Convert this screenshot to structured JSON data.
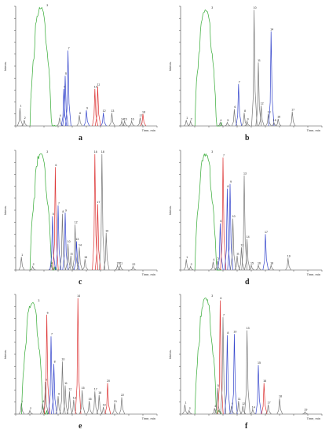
{
  "figure": {
    "panel_letters": [
      "a",
      "b",
      "c",
      "d",
      "e",
      "f"
    ],
    "colors": {
      "green": "#33aa33",
      "blue": "#3344cc",
      "red": "#dd3333",
      "gray": "#777777",
      "axis": "#444444"
    }
  },
  "chart_data": [
    {
      "type": "line",
      "panel": "a",
      "ylabel": "Intens.",
      "xlabel": "Time, min",
      "ylim": [
        0,
        100
      ],
      "peaks": [
        {
          "x": 0.03,
          "h": 15,
          "c": "gray",
          "label": "1"
        },
        {
          "x": 0.06,
          "h": 5,
          "c": "gray",
          "label": "2"
        },
        {
          "x": 0.19,
          "h": 99,
          "c": "green",
          "label": "3",
          "broad": true
        },
        {
          "x": 0.31,
          "h": 7,
          "c": "gray",
          "label": "4"
        },
        {
          "x": 0.34,
          "h": 31,
          "c": "blue",
          "label": "5"
        },
        {
          "x": 0.35,
          "h": 42,
          "c": "blue",
          "label": "6"
        },
        {
          "x": 0.37,
          "h": 63,
          "c": "blue",
          "label": "7"
        },
        {
          "x": 0.45,
          "h": 9,
          "c": "gray",
          "label": "8"
        },
        {
          "x": 0.5,
          "h": 13,
          "c": "blue",
          "label": "9"
        },
        {
          "x": 0.56,
          "h": 31,
          "c": "red",
          "label": "10"
        },
        {
          "x": 0.58,
          "h": 33,
          "c": "red",
          "label": "11"
        },
        {
          "x": 0.62,
          "h": 11,
          "c": "blue",
          "label": "12"
        },
        {
          "x": 0.68,
          "h": 11,
          "c": "gray",
          "label": "13"
        },
        {
          "x": 0.75,
          "h": 4,
          "c": "gray",
          "label": "14"
        },
        {
          "x": 0.77,
          "h": 4,
          "c": "gray",
          "label": "15"
        },
        {
          "x": 0.82,
          "h": 4,
          "c": "gray",
          "label": "16"
        },
        {
          "x": 0.88,
          "h": 7,
          "c": "gray",
          "label": "17"
        },
        {
          "x": 0.9,
          "h": 10,
          "c": "red",
          "label": "18"
        }
      ]
    },
    {
      "type": "line",
      "panel": "b",
      "ylabel": "Intens.",
      "xlabel": "Time, min",
      "ylim": [
        0,
        100
      ],
      "peaks": [
        {
          "x": 0.04,
          "h": 5,
          "c": "gray",
          "label": "1"
        },
        {
          "x": 0.07,
          "h": 4,
          "c": "gray",
          "label": "2"
        },
        {
          "x": 0.19,
          "h": 97,
          "c": "green",
          "label": "3",
          "broad": true
        },
        {
          "x": 0.28,
          "h": 3,
          "c": "gray",
          "label": "4"
        },
        {
          "x": 0.33,
          "h": 3,
          "c": "gray",
          "label": "5"
        },
        {
          "x": 0.38,
          "h": 14,
          "c": "gray",
          "label": "6"
        },
        {
          "x": 0.41,
          "h": 35,
          "c": "blue",
          "label": "7"
        },
        {
          "x": 0.45,
          "h": 11,
          "c": "gray",
          "label": "8"
        },
        {
          "x": 0.47,
          "h": 4,
          "c": "gray",
          "label": "9"
        },
        {
          "x": 0.52,
          "h": 97,
          "c": "gray",
          "label": "10"
        },
        {
          "x": 0.55,
          "h": 53,
          "c": "gray",
          "label": "11"
        },
        {
          "x": 0.57,
          "h": 17,
          "c": "gray",
          "label": "12"
        },
        {
          "x": 0.62,
          "h": 10,
          "c": "gray",
          "label": "13"
        },
        {
          "x": 0.64,
          "h": 79,
          "c": "blue",
          "label": "14"
        },
        {
          "x": 0.66,
          "h": 3,
          "c": "gray",
          "label": "15"
        },
        {
          "x": 0.69,
          "h": 6,
          "c": "gray",
          "label": "16"
        },
        {
          "x": 0.79,
          "h": 12,
          "c": "gray",
          "label": "17"
        }
      ]
    },
    {
      "type": "line",
      "panel": "c",
      "ylabel": "Intens.",
      "xlabel": "Time, min",
      "ylim": [
        0,
        100
      ],
      "peaks": [
        {
          "x": 0.04,
          "h": 11,
          "c": "gray",
          "label": "1"
        },
        {
          "x": 0.12,
          "h": 3,
          "c": "gray",
          "label": "2"
        },
        {
          "x": 0.19,
          "h": 97,
          "c": "green",
          "label": "3",
          "broad": true
        },
        {
          "x": 0.25,
          "h": 4,
          "c": "gray",
          "label": "4"
        },
        {
          "x": 0.26,
          "h": 45,
          "c": "blue",
          "label": "5"
        },
        {
          "x": 0.28,
          "h": 86,
          "c": "red",
          "label": "6"
        },
        {
          "x": 0.3,
          "h": 54,
          "c": "blue",
          "label": "7"
        },
        {
          "x": 0.33,
          "h": 47,
          "c": "gray",
          "label": "8"
        },
        {
          "x": 0.35,
          "h": 48,
          "c": "blue",
          "label": "9"
        },
        {
          "x": 0.37,
          "h": 22,
          "c": "gray",
          "label": "10"
        },
        {
          "x": 0.39,
          "h": 12,
          "c": "gray",
          "label": "11"
        },
        {
          "x": 0.42,
          "h": 38,
          "c": "gray",
          "label": "12"
        },
        {
          "x": 0.43,
          "h": 24,
          "c": "blue",
          "label": "13"
        },
        {
          "x": 0.45,
          "h": 19,
          "c": "gray",
          "label": "14"
        },
        {
          "x": 0.49,
          "h": 9,
          "c": "gray",
          "label": "15"
        },
        {
          "x": 0.56,
          "h": 97,
          "c": "red",
          "label": "16"
        },
        {
          "x": 0.58,
          "h": 55,
          "c": "red",
          "label": "17"
        },
        {
          "x": 0.61,
          "h": 97,
          "c": "gray",
          "label": "18"
        },
        {
          "x": 0.64,
          "h": 31,
          "c": "gray",
          "label": "19"
        },
        {
          "x": 0.72,
          "h": 4,
          "c": "gray",
          "label": "20"
        },
        {
          "x": 0.74,
          "h": 4,
          "c": "gray",
          "label": "21"
        },
        {
          "x": 0.83,
          "h": 3,
          "c": "gray",
          "label": "22"
        }
      ]
    },
    {
      "type": "line",
      "panel": "d",
      "ylabel": "Intens.",
      "xlabel": "Time, min",
      "ylim": [
        0,
        100
      ],
      "peaks": [
        {
          "x": 0.04,
          "h": 9,
          "c": "gray",
          "label": "1"
        },
        {
          "x": 0.07,
          "h": 3,
          "c": "gray",
          "label": "2"
        },
        {
          "x": 0.19,
          "h": 97,
          "c": "green",
          "label": "3",
          "broad": true
        },
        {
          "x": 0.23,
          "h": 7,
          "c": "gray",
          "label": "4"
        },
        {
          "x": 0.26,
          "h": 8,
          "c": "gray",
          "label": "5"
        },
        {
          "x": 0.28,
          "h": 39,
          "c": "blue",
          "label": "6"
        },
        {
          "x": 0.3,
          "h": 94,
          "c": "red",
          "label": "7"
        },
        {
          "x": 0.33,
          "h": 68,
          "c": "blue",
          "label": "8"
        },
        {
          "x": 0.35,
          "h": 72,
          "c": "blue",
          "label": "9"
        },
        {
          "x": 0.37,
          "h": 43,
          "c": "gray",
          "label": "10"
        },
        {
          "x": 0.4,
          "h": 12,
          "c": "gray",
          "label": "11"
        },
        {
          "x": 0.43,
          "h": 19,
          "c": "gray",
          "label": "12"
        },
        {
          "x": 0.45,
          "h": 79,
          "c": "gray",
          "label": "13"
        },
        {
          "x": 0.47,
          "h": 26,
          "c": "gray",
          "label": "14"
        },
        {
          "x": 0.5,
          "h": 4,
          "c": "gray",
          "label": "15"
        },
        {
          "x": 0.55,
          "h": 4,
          "c": "gray",
          "label": "16"
        },
        {
          "x": 0.6,
          "h": 30,
          "c": "blue",
          "label": "17"
        },
        {
          "x": 0.64,
          "h": 4,
          "c": "gray",
          "label": "18"
        },
        {
          "x": 0.76,
          "h": 10,
          "c": "gray",
          "label": "19"
        }
      ]
    },
    {
      "type": "line",
      "panel": "e",
      "ylabel": "Intens.",
      "xlabel": "Time, min",
      "ylim": [
        0,
        100
      ],
      "peaks": [
        {
          "x": 0.04,
          "h": 9,
          "c": "gray",
          "label": "1"
        },
        {
          "x": 0.1,
          "h": 3,
          "c": "gray",
          "label": "2"
        },
        {
          "x": 0.13,
          "h": 93,
          "c": "green",
          "label": "3",
          "broad": true
        },
        {
          "x": 0.19,
          "h": 9,
          "c": "gray",
          "label": "4"
        },
        {
          "x": 0.21,
          "h": 27,
          "c": "gray",
          "label": "5"
        },
        {
          "x": 0.22,
          "h": 83,
          "c": "red",
          "label": "6"
        },
        {
          "x": 0.25,
          "h": 65,
          "c": "blue",
          "label": "7"
        },
        {
          "x": 0.27,
          "h": 42,
          "c": "blue",
          "label": "8"
        },
        {
          "x": 0.3,
          "h": 15,
          "c": "gray",
          "label": "9"
        },
        {
          "x": 0.33,
          "h": 44,
          "c": "gray",
          "label": "10"
        },
        {
          "x": 0.35,
          "h": 24,
          "c": "gray",
          "label": "11"
        },
        {
          "x": 0.38,
          "h": 19,
          "c": "gray",
          "label": "12"
        },
        {
          "x": 0.41,
          "h": 12,
          "c": "gray",
          "label": "13"
        },
        {
          "x": 0.44,
          "h": 97,
          "c": "red",
          "label": "14"
        },
        {
          "x": 0.47,
          "h": 20,
          "c": "gray",
          "label": "15"
        },
        {
          "x": 0.52,
          "h": 11,
          "c": "gray",
          "label": "16"
        },
        {
          "x": 0.56,
          "h": 19,
          "c": "gray",
          "label": "17"
        },
        {
          "x": 0.59,
          "h": 16,
          "c": "gray",
          "label": "18"
        },
        {
          "x": 0.62,
          "h": 6,
          "c": "gray",
          "label": "19"
        },
        {
          "x": 0.65,
          "h": 26,
          "c": "red",
          "label": "20"
        },
        {
          "x": 0.7,
          "h": 9,
          "c": "gray",
          "label": "21"
        },
        {
          "x": 0.75,
          "h": 14,
          "c": "gray",
          "label": "22"
        }
      ]
    },
    {
      "type": "line",
      "panel": "f",
      "ylabel": "Intens.",
      "xlabel": "Time, min",
      "ylim": [
        0,
        100
      ],
      "peaks": [
        {
          "x": 0.03,
          "h": 8,
          "c": "gray",
          "label": "1"
        },
        {
          "x": 0.06,
          "h": 3,
          "c": "gray",
          "label": "2"
        },
        {
          "x": 0.19,
          "h": 97,
          "c": "green",
          "label": "3",
          "broad": true
        },
        {
          "x": 0.24,
          "h": 5,
          "c": "gray",
          "label": "4"
        },
        {
          "x": 0.26,
          "h": 22,
          "c": "gray",
          "label": "5"
        },
        {
          "x": 0.28,
          "h": 95,
          "c": "red",
          "label": "6"
        },
        {
          "x": 0.3,
          "h": 81,
          "c": "gray",
          "label": "7"
        },
        {
          "x": 0.33,
          "h": 66,
          "c": "blue",
          "label": "8"
        },
        {
          "x": 0.36,
          "h": 7,
          "c": "gray",
          "label": "9"
        },
        {
          "x": 0.38,
          "h": 67,
          "c": "blue",
          "label": "10"
        },
        {
          "x": 0.41,
          "h": 11,
          "c": "gray",
          "label": "11"
        },
        {
          "x": 0.44,
          "h": 7,
          "c": "gray",
          "label": "12"
        },
        {
          "x": 0.47,
          "h": 70,
          "c": "gray",
          "label": "13"
        },
        {
          "x": 0.51,
          "h": 4,
          "c": "gray",
          "label": "14"
        },
        {
          "x": 0.55,
          "h": 41,
          "c": "blue",
          "label": "15"
        },
        {
          "x": 0.59,
          "h": 26,
          "c": "red",
          "label": "16"
        },
        {
          "x": 0.62,
          "h": 8,
          "c": "gray",
          "label": "17"
        },
        {
          "x": 0.7,
          "h": 13,
          "c": "gray",
          "label": "18"
        },
        {
          "x": 0.88,
          "h": 2,
          "c": "gray",
          "label": "19"
        }
      ]
    }
  ]
}
